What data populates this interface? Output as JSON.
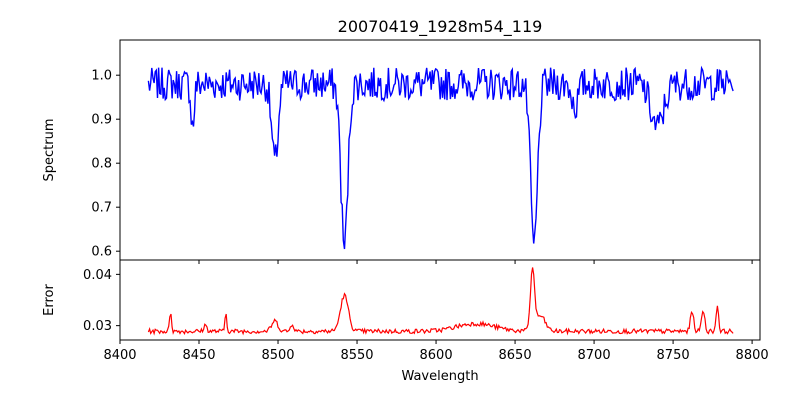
{
  "chart_data": [
    {
      "panel": "top",
      "type": "line",
      "title": "20070419_1928m54_119",
      "xlabel": "",
      "ylabel": "Spectrum",
      "xlim": [
        8400,
        8805
      ],
      "ylim": [
        0.58,
        1.08
      ],
      "xticks": [
        8400,
        8450,
        8500,
        8550,
        8600,
        8650,
        8700,
        8750,
        8800
      ],
      "yticks": [
        0.6,
        0.7,
        0.8,
        0.9,
        1.0
      ],
      "ytick_labels": [
        "0.6",
        "0.7",
        "0.8",
        "0.9",
        "1.0"
      ],
      "grid": false,
      "x_range": [
        8418,
        8788
      ],
      "continuum": 0.98,
      "color": "#0000ff",
      "features": [
        {
          "x": 8446,
          "depth": 0.1,
          "width": 1.0
        },
        {
          "x": 8498,
          "depth": 0.18,
          "width": 2.0
        },
        {
          "x": 8542,
          "depth": 0.37,
          "width": 2.2
        },
        {
          "x": 8662,
          "depth": 0.37,
          "width": 2.2
        },
        {
          "x": 8688,
          "depth": 0.05,
          "width": 2.0
        },
        {
          "x": 8740,
          "depth": 0.1,
          "width": 4.0
        }
      ]
    },
    {
      "panel": "bottom",
      "type": "line",
      "title": "",
      "xlabel": "Wavelength",
      "ylabel": "Error",
      "xlim": [
        8400,
        8805
      ],
      "ylim": [
        0.0272,
        0.0428
      ],
      "xticks": [
        8400,
        8450,
        8500,
        8550,
        8600,
        8650,
        8700,
        8750,
        8800
      ],
      "xtick_labels": [
        "8400",
        "8450",
        "8500",
        "8550",
        "8600",
        "8650",
        "8700",
        "8750",
        "8800"
      ],
      "yticks": [
        0.03,
        0.04
      ],
      "ytick_labels": [
        "0.03",
        "0.04"
      ],
      "grid": false,
      "x_range": [
        8418,
        8788
      ],
      "baseline": 0.0289,
      "color": "#ff0000",
      "features": [
        {
          "x": 8432,
          "height": 0.004,
          "width": 0.6
        },
        {
          "x": 8454,
          "height": 0.0012,
          "width": 1.0
        },
        {
          "x": 8467,
          "height": 0.0036,
          "width": 0.6
        },
        {
          "x": 8498,
          "height": 0.002,
          "width": 2.0
        },
        {
          "x": 8509,
          "height": 0.0015,
          "width": 1.0
        },
        {
          "x": 8542,
          "height": 0.007,
          "width": 2.5
        },
        {
          "x": 8625,
          "height": 0.0015,
          "width": 12.0
        },
        {
          "x": 8661,
          "height": 0.0118,
          "width": 1.3
        },
        {
          "x": 8666,
          "height": 0.003,
          "width": 3.0
        },
        {
          "x": 8762,
          "height": 0.004,
          "width": 1.0
        },
        {
          "x": 8769,
          "height": 0.0042,
          "width": 1.0
        },
        {
          "x": 8778,
          "height": 0.005,
          "width": 0.8
        }
      ]
    }
  ]
}
